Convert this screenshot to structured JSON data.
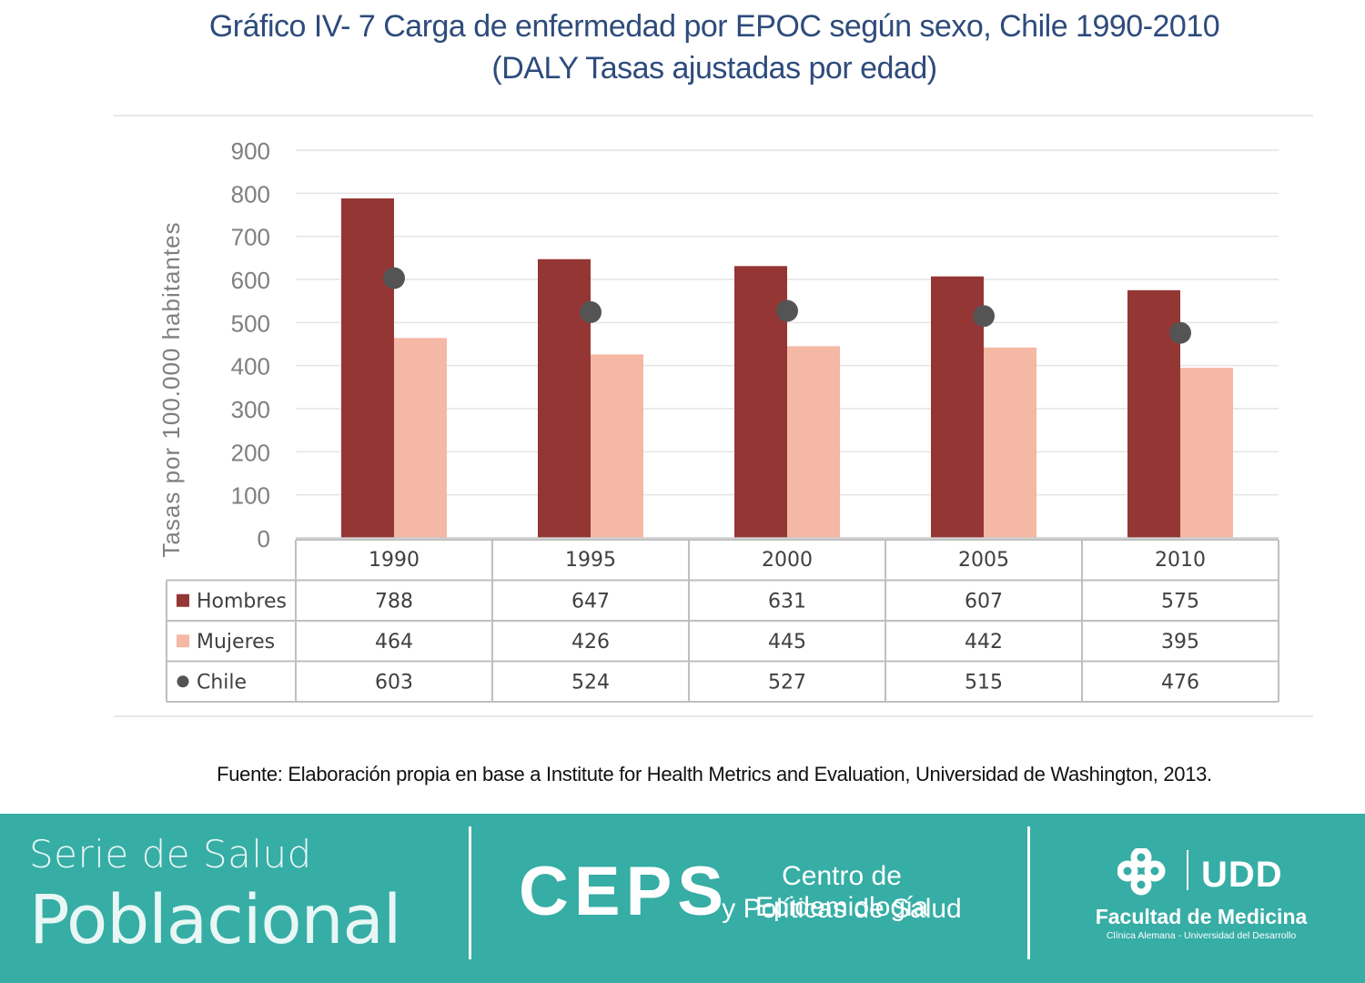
{
  "header": {
    "title_line1": "Gráfico  IV- 7 Carga de enfermedad por EPOC según sexo, Chile 1990-2010",
    "title_line2": "(DALY Tasas ajustadas por edad)"
  },
  "chart_data": {
    "type": "bar",
    "title": "Gráfico  IV- 7 Carga de enfermedad por EPOC según sexo, Chile 1990-2010",
    "subtitle": "(DALY Tasas ajustadas por edad)",
    "ylabel": "Tasas por 100.000 habitantes",
    "xlabel": "",
    "ylim": [
      0,
      900
    ],
    "yticks": [
      0,
      100,
      200,
      300,
      400,
      500,
      600,
      700,
      800,
      900
    ],
    "grid": true,
    "legend": "data-table",
    "categories": [
      "1990",
      "1995",
      "2000",
      "2005",
      "2010"
    ],
    "series": [
      {
        "name": "Hombres",
        "type": "bar",
        "color": "#943634",
        "values": [
          788,
          647,
          631,
          607,
          575
        ]
      },
      {
        "name": "Mujeres",
        "type": "bar",
        "color": "#f4b8a5",
        "values": [
          464,
          426,
          445,
          442,
          395
        ]
      },
      {
        "name": "Chile",
        "type": "marker",
        "color": "#545454",
        "values": [
          603,
          524,
          527,
          515,
          476
        ]
      }
    ]
  },
  "source": {
    "text": "Fuente: Elaboración propia en base a Institute for Health Metrics and Evaluation, Universidad de Washington, 2013."
  },
  "footer": {
    "serie_line1": "Serie de Salud",
    "serie_line2": "Poblacional",
    "ceps": "CEPS",
    "ceps_line1": "Centro de Epidemiología",
    "ceps_line2": "y Políticas de Salud",
    "udd": "UDD",
    "facultad": "Facultad de Medicina",
    "clinica": "Clínica Alemana - Universidad del Desarrollo",
    "background_color": "#36ada5"
  }
}
